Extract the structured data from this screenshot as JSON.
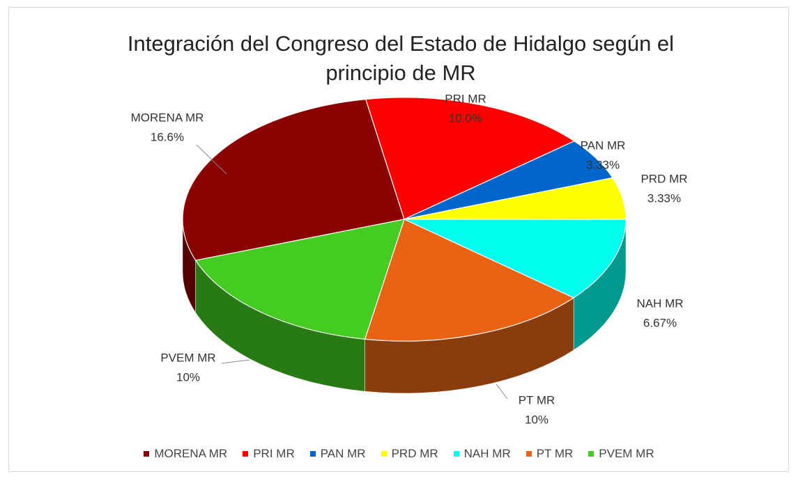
{
  "chart_data": {
    "type": "pie",
    "title": "Integración del Congreso del Estado de Hidalgo según el principio de MR",
    "categories": [
      "MORENA MR",
      "PRI MR",
      "PAN MR",
      "PRD MR",
      "NAH MR",
      "PT MR",
      "PVEM MR"
    ],
    "values": [
      16.6,
      10.0,
      3.33,
      3.33,
      6.67,
      10,
      10
    ],
    "value_labels": [
      "16.6%",
      "10.0%",
      "3.33%",
      "3.33%",
      "6.67%",
      "10%",
      "10%"
    ],
    "colors": [
      "#8b0000",
      "#ff0000",
      "#0066cc",
      "#ffff00",
      "#00ffee",
      "#e86414",
      "#44cc22"
    ],
    "legend": "bottom"
  }
}
